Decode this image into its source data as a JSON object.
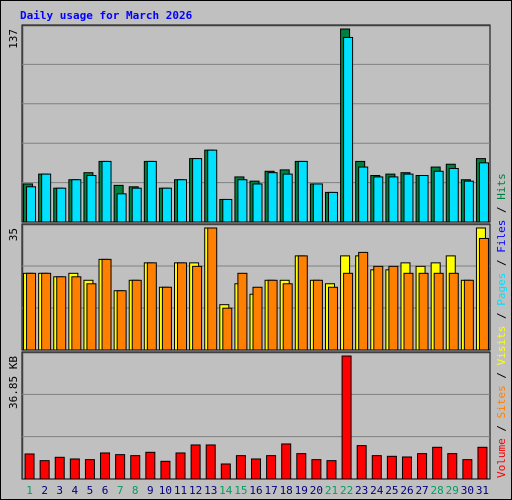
{
  "chart_data": {
    "type": "bar",
    "title": "Daily usage for March 2026",
    "categories": [
      "1",
      "2",
      "3",
      "4",
      "5",
      "6",
      "7",
      "8",
      "9",
      "10",
      "11",
      "12",
      "13",
      "14",
      "15",
      "16",
      "17",
      "18",
      "19",
      "20",
      "21",
      "22",
      "23",
      "24",
      "25",
      "26",
      "27",
      "28",
      "29",
      "30",
      "31"
    ],
    "weekend_days": [
      1,
      7,
      8,
      14,
      15,
      21,
      22,
      28,
      29
    ],
    "panels": [
      {
        "name": "hits-files",
        "ylabel_max": "137",
        "ymax": 137,
        "grid": true,
        "series": [
          {
            "name": "Hits",
            "color": "#008040",
            "values": [
              27,
              34,
              24,
              30,
              35,
              43,
              26,
              25,
              43,
              24,
              30,
              45,
              51,
              16,
              32,
              29,
              36,
              37,
              43,
              27,
              21,
              137,
              43,
              33,
              34,
              35,
              33,
              39,
              41,
              30,
              45
            ]
          },
          {
            "name": "Files",
            "color": "#00e0ff",
            "values": [
              25,
              34,
              24,
              30,
              33,
              43,
              20,
              24,
              43,
              24,
              30,
              45,
              51,
              16,
              30,
              27,
              35,
              34,
              43,
              27,
              21,
              131,
              39,
              32,
              32,
              34,
              33,
              36,
              38,
              29,
              42
            ]
          }
        ]
      },
      {
        "name": "pages-visits",
        "ylabel_max": "35",
        "ymax": 35,
        "grid": true,
        "series": [
          {
            "name": "Pages",
            "color": "#ffff00",
            "values": [
              22,
              22,
              21,
              22,
              20,
              26,
              17,
              20,
              25,
              18,
              25,
              25,
              35,
              13,
              19,
              16,
              20,
              20,
              27,
              20,
              19,
              27,
              27,
              23,
              23,
              25,
              24,
              25,
              27,
              20,
              35
            ]
          },
          {
            "name": "Visits",
            "color": "#ff8000",
            "values": [
              22,
              22,
              21,
              21,
              19,
              26,
              17,
              20,
              25,
              18,
              25,
              24,
              35,
              12,
              22,
              18,
              20,
              19,
              27,
              20,
              18,
              22,
              28,
              24,
              24,
              22,
              22,
              22,
              22,
              20,
              32
            ]
          }
        ]
      },
      {
        "name": "sites-volume",
        "ylabel_max": "36.85 KB",
        "ymax": 36.85,
        "grid": true,
        "series": [
          {
            "name": "Sites",
            "color": "#ff8000",
            "values": []
          },
          {
            "name": "Volume",
            "color": "#ff0000",
            "values": [
              7.5,
              5.5,
              6.5,
              6.0,
              5.8,
              7.8,
              7.3,
              7.0,
              8.0,
              5.3,
              7.8,
              10.2,
              10.2,
              4.5,
              7.0,
              6.0,
              7.0,
              10.5,
              7.6,
              5.8,
              5.5,
              36.85,
              10.0,
              7.0,
              6.8,
              6.6,
              7.6,
              9.5,
              7.6,
              5.8,
              9.5
            ]
          }
        ]
      }
    ],
    "legend": {
      "placement": "right-vertical",
      "items": [
        {
          "text": "Volume",
          "color": "#ff0000"
        },
        {
          "text": "Sites",
          "color": "#ff8000"
        },
        {
          "text": "Visits",
          "color": "#ffff00"
        },
        {
          "text": "Pages",
          "color": "#00e0ff"
        },
        {
          "text": "Files",
          "color": "#0000ff"
        },
        {
          "text": "Hits",
          "color": "#008040"
        }
      ],
      "separator": "/"
    },
    "colors": {
      "background": "#c0c0c0",
      "plot_background": "#c0c0c0",
      "title": "#0000ff",
      "axis_label": "#000000",
      "weekday_label": "#000080",
      "weekend_label": "#00a060"
    }
  }
}
